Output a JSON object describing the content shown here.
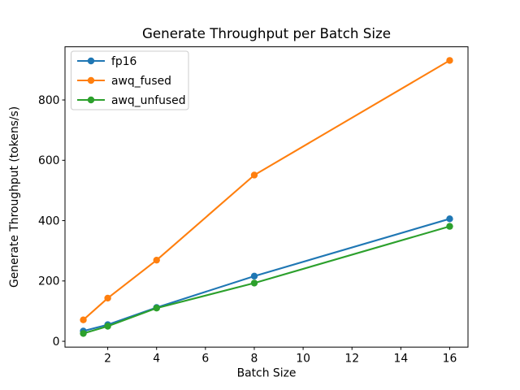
{
  "figure": {
    "background": "#ffffff",
    "axis_color": "#000000",
    "text_color": "#000000",
    "legend_border_color": "#cccccc"
  },
  "chart_data": {
    "type": "line",
    "title": "Generate Throughput per Batch Size",
    "xlabel": "Batch Size",
    "ylabel": "Generate Throughput (tokens/s)",
    "x": [
      1,
      2,
      4,
      8,
      16
    ],
    "series": [
      {
        "name": "fp16",
        "color": "#1f77b4",
        "values": [
          34,
          55,
          112,
          216,
          406
        ]
      },
      {
        "name": "awq_fused",
        "color": "#ff7f0e",
        "values": [
          71,
          143,
          269,
          551,
          931
        ]
      },
      {
        "name": "awq_unfused",
        "color": "#2ca02c",
        "values": [
          26,
          50,
          110,
          193,
          381
        ]
      }
    ],
    "xticks": [
      2,
      4,
      6,
      8,
      10,
      12,
      14,
      16
    ],
    "yticks": [
      0,
      200,
      400,
      600,
      800
    ],
    "xlim": [
      0.25,
      16.75
    ],
    "ylim": [
      -19.25,
      976.25
    ],
    "legend": {
      "position": "upper left",
      "entries": [
        "fp16",
        "awq_fused",
        "awq_unfused"
      ]
    },
    "grid": false,
    "marker": "o"
  }
}
